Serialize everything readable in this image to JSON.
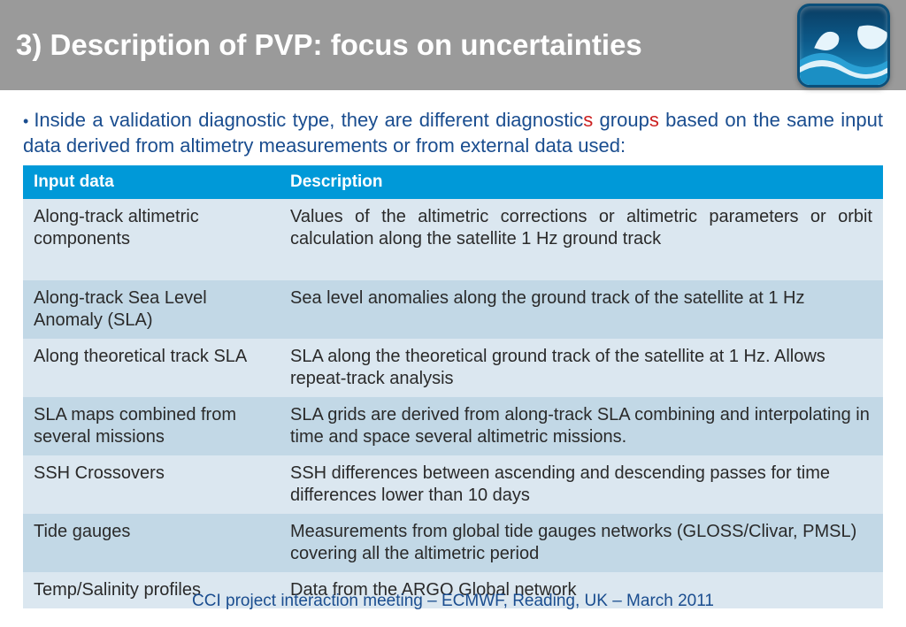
{
  "header": {
    "title": "3) Description of PVP: focus on uncertainties"
  },
  "intro": {
    "pre": "Inside a validation diagnostic type, they are different diagnostic",
    "s1": "s",
    "mid": " group",
    "s2": "s",
    "post": " based on the same input data derived from altimetry measurements or from external data used:"
  },
  "table": {
    "headers": {
      "col1": "Input data",
      "col2": "Description"
    },
    "rows": [
      {
        "input": "Along-track altimetric components",
        "desc": "Values of the altimetric corrections or altimetric parameters or orbit calculation along the satellite 1 Hz ground track",
        "justify": true,
        "extraPad": true
      },
      {
        "input": "Along-track Sea Level Anomaly (SLA)",
        "desc": "Sea level anomalies along the ground track of the satellite at 1 Hz"
      },
      {
        "input": "Along theoretical track SLA",
        "desc": "SLA along the theoretical ground track of the satellite at 1 Hz. Allows repeat-track analysis"
      },
      {
        "input": "SLA maps combined from several missions",
        "desc": "SLA grids are derived from along-track SLA combining and interpolating in time and space several altimetric missions."
      },
      {
        "input": "SSH Crossovers",
        "desc": "SSH differences between ascending and descending passes for time differences lower than 10 days"
      },
      {
        "input": "Tide gauges",
        "desc": "Measurements from global tide gauges networks (GLOSS/Clivar, PMSL) covering all the altimetric period"
      },
      {
        "input": "Temp/Salinity profiles",
        "desc": "Data from the ARGO Global network"
      }
    ]
  },
  "footer": "CCI project interaction meeting – ECMWF, Reading, UK – March 2011",
  "colors": {
    "header_bg": "#9a9a9a",
    "title_color": "#ffffff",
    "intro_color": "#1a4d8f",
    "red": "#cc2020",
    "table_header_bg": "#0099d8",
    "row_odd": "#dbe7f0",
    "row_even": "#c2d8e6",
    "footer_color": "#1a4d8f"
  }
}
